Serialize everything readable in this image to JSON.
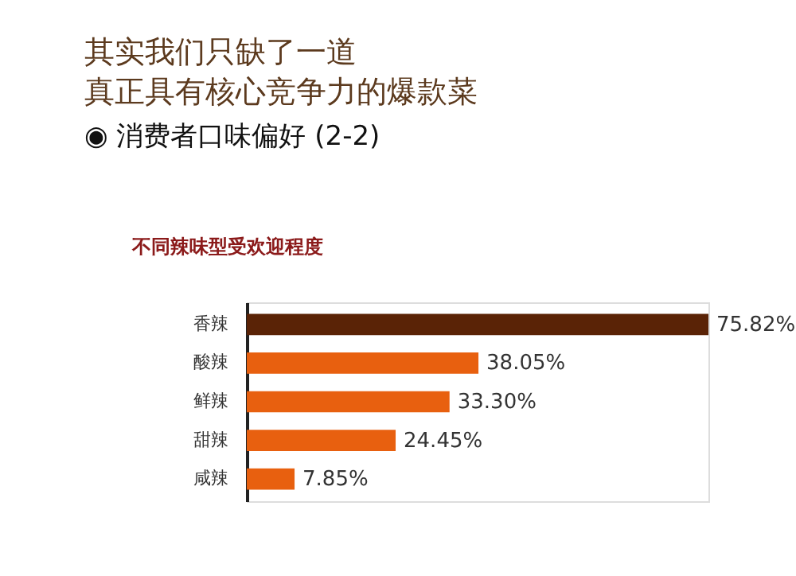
{
  "chart_data": {
    "type": "bar",
    "orientation": "horizontal",
    "title": [
      "其实我们只缺了一道",
      "真正具有核心竞争力的爆款菜"
    ],
    "subtitle": "◉ 消费者口味偏好 (2-2)",
    "annotations": [
      "不同辣味型受欢迎程度"
    ],
    "categories": [
      "香辣",
      "酸辣",
      "鲜辣",
      "甜辣",
      "咸辣"
    ],
    "values": [
      75.82,
      38.05,
      33.3,
      24.45,
      7.85
    ],
    "value_labels": [
      "75.82%",
      "38.05%",
      "33.30%",
      "24.45%",
      "7.85%"
    ],
    "colors": [
      "#5a2306",
      "#e8600f",
      "#e8600f",
      "#e8600f",
      "#e8600f"
    ]
  }
}
